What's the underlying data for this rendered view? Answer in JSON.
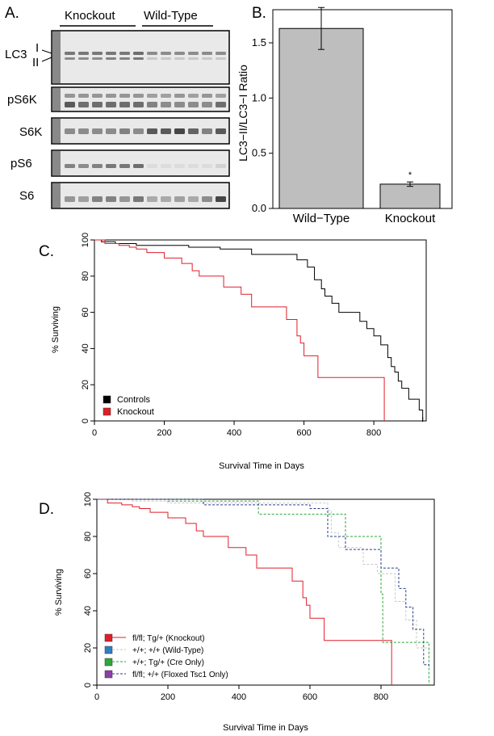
{
  "panels": {
    "a": "A.",
    "b": "B.",
    "c": "C.",
    "d": "D."
  },
  "blot": {
    "groups": [
      "Knockout",
      "Wild-Type"
    ],
    "rows": [
      "LC3",
      "pS6K",
      "S6K",
      "pS6",
      "S6"
    ],
    "lc3_bands": [
      "I",
      "II"
    ],
    "lanes": 12,
    "intensity": {
      "lc3_upper": [
        0.55,
        0.55,
        0.55,
        0.55,
        0.55,
        0.6,
        0.45,
        0.45,
        0.45,
        0.45,
        0.45,
        0.45
      ],
      "lc3_lower": [
        0.45,
        0.45,
        0.45,
        0.5,
        0.5,
        0.55,
        0.15,
        0.15,
        0.15,
        0.15,
        0.15,
        0.15
      ],
      "ps6k_upper": [
        0.4,
        0.4,
        0.4,
        0.4,
        0.4,
        0.4,
        0.35,
        0.35,
        0.4,
        0.35,
        0.4,
        0.35
      ],
      "ps6k_lower": [
        0.7,
        0.6,
        0.6,
        0.6,
        0.6,
        0.6,
        0.5,
        0.45,
        0.45,
        0.45,
        0.45,
        0.6
      ],
      "s6k": [
        0.45,
        0.45,
        0.45,
        0.45,
        0.5,
        0.45,
        0.7,
        0.7,
        0.8,
        0.65,
        0.5,
        0.7
      ],
      "ps6": [
        0.5,
        0.45,
        0.5,
        0.55,
        0.55,
        0.6,
        0.05,
        0.05,
        0.05,
        0.05,
        0.05,
        0.1
      ],
      "s6": [
        0.4,
        0.35,
        0.5,
        0.5,
        0.4,
        0.55,
        0.3,
        0.3,
        0.35,
        0.3,
        0.45,
        0.8
      ]
    }
  },
  "chart_data": [
    {
      "type": "bar",
      "categories": [
        "Wild−Type",
        "Knockout"
      ],
      "values": [
        1.63,
        0.22
      ],
      "errors": [
        0.19,
        0.02
      ],
      "annotations": [
        "",
        "*"
      ],
      "ylabel": "LC3−II/LC3−I Ratio",
      "ylim": [
        0,
        1.8
      ],
      "yticks": [
        "0.0",
        "0.5",
        "1.0",
        "1.5"
      ],
      "bar_color": "#bebebe"
    },
    {
      "type": "line",
      "step": true,
      "xlabel": "Survival Time in Days",
      "ylabel": "% Surviving",
      "xlim": [
        0,
        950
      ],
      "ylim": [
        0,
        100
      ],
      "xticks": [
        "0",
        "200",
        "400",
        "600",
        "800"
      ],
      "yticks": [
        "0",
        "20",
        "40",
        "60",
        "80",
        "100"
      ],
      "legend_position": "bottom-left",
      "series": [
        {
          "name": "Controls",
          "color": "#000000",
          "dash": false,
          "censor_end": true,
          "points": [
            [
              0,
              100
            ],
            [
              20,
              99
            ],
            [
              60,
              98
            ],
            [
              120,
              97
            ],
            [
              180,
              97
            ],
            [
              270,
              96
            ],
            [
              360,
              95
            ],
            [
              450,
              92
            ],
            [
              580,
              89
            ],
            [
              610,
              85
            ],
            [
              630,
              78
            ],
            [
              650,
              73
            ],
            [
              660,
              69
            ],
            [
              680,
              65
            ],
            [
              700,
              60
            ],
            [
              760,
              55
            ],
            [
              780,
              51
            ],
            [
              800,
              47
            ],
            [
              820,
              42
            ],
            [
              840,
              35
            ],
            [
              850,
              30
            ],
            [
              860,
              27
            ],
            [
              870,
              22
            ],
            [
              880,
              18
            ],
            [
              900,
              12
            ],
            [
              930,
              6
            ],
            [
              940,
              0
            ]
          ]
        },
        {
          "name": "Knockout",
          "color": "#e01e2a",
          "dash": false,
          "censor_end": false,
          "points": [
            [
              0,
              100
            ],
            [
              30,
              98
            ],
            [
              70,
              97
            ],
            [
              100,
              96
            ],
            [
              120,
              95
            ],
            [
              150,
              93
            ],
            [
              200,
              90
            ],
            [
              250,
              87
            ],
            [
              280,
              83
            ],
            [
              300,
              80
            ],
            [
              370,
              74
            ],
            [
              420,
              70
            ],
            [
              450,
              63
            ],
            [
              550,
              56
            ],
            [
              580,
              47
            ],
            [
              590,
              43
            ],
            [
              600,
              36
            ],
            [
              640,
              24
            ],
            [
              830,
              0
            ]
          ]
        }
      ]
    },
    {
      "type": "line",
      "step": true,
      "xlabel": "Survival Time in Days",
      "ylabel": "% Surviving",
      "xlim": [
        0,
        950
      ],
      "ylim": [
        0,
        100
      ],
      "xticks": [
        "0",
        "200",
        "400",
        "600",
        "800"
      ],
      "yticks": [
        "0",
        "20",
        "40",
        "60",
        "80",
        "100"
      ],
      "legend_position": "bottom-left",
      "series": [
        {
          "name": "fl/fl; Tg/+ (Knockout)",
          "color": "#e01e2a",
          "swatch": "#e01e2a",
          "dash": false,
          "censor_end": false,
          "points": [
            [
              0,
              100
            ],
            [
              30,
              98
            ],
            [
              70,
              97
            ],
            [
              100,
              96
            ],
            [
              120,
              95
            ],
            [
              150,
              93
            ],
            [
              200,
              90
            ],
            [
              250,
              87
            ],
            [
              280,
              83
            ],
            [
              300,
              80
            ],
            [
              370,
              74
            ],
            [
              420,
              70
            ],
            [
              450,
              63
            ],
            [
              550,
              56
            ],
            [
              580,
              47
            ],
            [
              590,
              43
            ],
            [
              600,
              36
            ],
            [
              640,
              24
            ],
            [
              830,
              0
            ]
          ]
        },
        {
          "name": "+/+; +/+ (Wild-Type)",
          "color": "#c8c8c8",
          "swatch": "#2f7fc1",
          "dash": true,
          "censor_end": false,
          "points": [
            [
              0,
              100
            ],
            [
              100,
              99
            ],
            [
              200,
              98
            ],
            [
              640,
              98
            ],
            [
              650,
              94
            ],
            [
              660,
              82
            ],
            [
              680,
              74
            ],
            [
              750,
              65
            ],
            [
              790,
              60
            ],
            [
              840,
              45
            ],
            [
              870,
              35
            ],
            [
              900,
              20
            ],
            [
              935,
              15
            ]
          ]
        },
        {
          "name": "+/+; Tg/+ (Cre Only)",
          "color": "#2fa63a",
          "swatch": "#2fa63a",
          "dash": true,
          "censor_end": false,
          "points": [
            [
              0,
              100
            ],
            [
              200,
              99
            ],
            [
              450,
              99
            ],
            [
              455,
              92
            ],
            [
              700,
              80
            ],
            [
              800,
              49
            ],
            [
              805,
              23
            ],
            [
              935,
              23
            ],
            [
              935,
              0
            ]
          ]
        },
        {
          "name": "fl/fl; +/+ (Floxed Tsc1 Only)",
          "color": "#2b3c8c",
          "swatch": "#8c3fa8",
          "dash": true,
          "censor_end": false,
          "points": [
            [
              0,
              100
            ],
            [
              300,
              97
            ],
            [
              600,
              95
            ],
            [
              650,
              80
            ],
            [
              700,
              73
            ],
            [
              800,
              63
            ],
            [
              850,
              52
            ],
            [
              870,
              42
            ],
            [
              890,
              30
            ],
            [
              920,
              11
            ],
            [
              935,
              10
            ]
          ]
        }
      ]
    }
  ]
}
